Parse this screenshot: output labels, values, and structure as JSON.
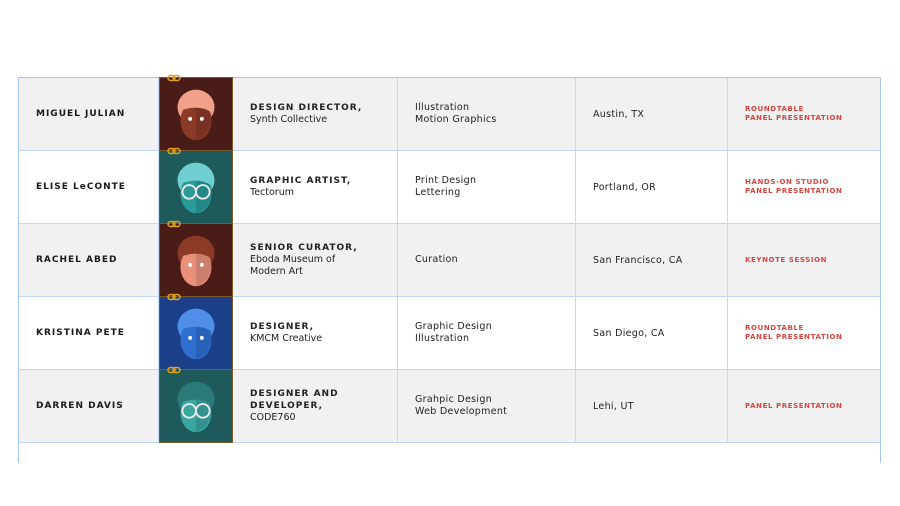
{
  "speakers": [
    {
      "name": "MIGUEL JULIAN",
      "role": "DESIGN DIRECTOR,",
      "org": "Synth Collective",
      "specialties": [
        "Illustration",
        "Motion Graphics"
      ],
      "location": "Austin, TX",
      "sessions": [
        "ROUNDTABLE",
        "PANEL PRESENTATION"
      ],
      "avatar_bg": "#4a1c18",
      "skin": "#8a3a26",
      "hair": "#f2a08a"
    },
    {
      "name": "ELISE LeCONTE",
      "role": "GRAPHIC ARTIST,",
      "org": "Tectorum",
      "specialties": [
        "Print Design",
        "Lettering"
      ],
      "location": "Portland, OR",
      "sessions": [
        "HANDS-ON STUDIO",
        "PANEL PRESENTATION"
      ],
      "avatar_bg": "#1f5a5a",
      "skin": "#2a9a9a",
      "hair": "#6fcfd0"
    },
    {
      "name": "RACHEL ABED",
      "role": "SENIOR CURATOR,",
      "org": "Eboda Museum of Modern Art",
      "specialties": [
        "Curation"
      ],
      "location": "San Francisco, CA",
      "sessions": [
        "KEYNOTE SESSION"
      ],
      "avatar_bg": "#4a1c18",
      "skin": "#e8907a",
      "hair": "#8a3a26"
    },
    {
      "name": "KRISTINA PETE",
      "role": "DESIGNER,",
      "org": "KMCM Creative",
      "specialties": [
        "Graphic Design",
        "Illustration"
      ],
      "location": "San Diego, CA",
      "sessions": [
        "ROUNDTABLE",
        "PANEL PRESENTATION"
      ],
      "avatar_bg": "#1c3f8a",
      "skin": "#2f6fd0",
      "hair": "#4f8fe8"
    },
    {
      "name": "DARREN DAVIS",
      "role": "DESIGNER AND DEVELOPER,",
      "org": "CODE760",
      "specialties": [
        "Grahpic Design",
        "Web Development"
      ],
      "location": "Lehi, UT",
      "sessions": [
        "PANEL PRESENTATION"
      ],
      "avatar_bg": "#1f5a5a",
      "skin": "#3aa6a0",
      "hair": "#2a7a78"
    }
  ],
  "colors": {
    "session_text": "#d9453f",
    "grid": "#c4d8f6",
    "alt_row": "#f1f1f1",
    "link_icon": "#e3a21a"
  }
}
